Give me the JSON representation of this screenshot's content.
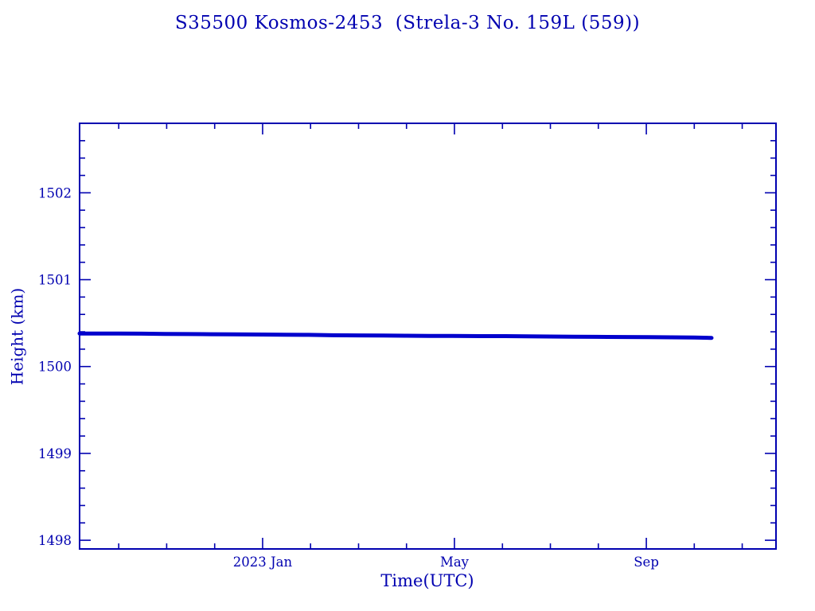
{
  "page": {
    "background": "#ffffff"
  },
  "chart_data": {
    "type": "line",
    "title": "S35500 Kosmos-2453  (Strela-3 No. 159L (559))",
    "xlabel": "Time(UTC)",
    "ylabel": "Height (km)",
    "xlim": [
      2022.682,
      2023.892
    ],
    "ylim": [
      1497.9,
      1502.8
    ],
    "grid": false,
    "legend": "none",
    "frame_color": "#0000b0",
    "text_color": "#0000b0",
    "x_major_ticks": [
      {
        "value": 2023.0,
        "label": "2023 Jan"
      },
      {
        "value": 2023.3333,
        "label": "May"
      },
      {
        "value": 2023.6667,
        "label": "Sep"
      }
    ],
    "x_minor_ticks": [
      2022.75,
      2022.8333,
      2022.9167,
      2023.0833,
      2023.1667,
      2023.25,
      2023.4167,
      2023.5,
      2023.5833,
      2023.75,
      2023.8333
    ],
    "y_major_ticks": [
      {
        "value": 1498,
        "label": "1498"
      },
      {
        "value": 1499,
        "label": "1499"
      },
      {
        "value": 1500,
        "label": "1500"
      },
      {
        "value": 1501,
        "label": "1501"
      },
      {
        "value": 1502,
        "label": "1502"
      }
    ],
    "y_minor_step": 0.2,
    "series": [
      {
        "name": "height",
        "color": "#0000cd",
        "line_width": 5,
        "x": [
          2022.682,
          2022.72,
          2022.75,
          2022.79,
          2022.83,
          2022.87,
          2022.91,
          2022.95,
          2023.0,
          2023.04,
          2023.08,
          2023.12,
          2023.17,
          2023.21,
          2023.25,
          2023.29,
          2023.33,
          2023.38,
          2023.42,
          2023.46,
          2023.5,
          2023.54,
          2023.58,
          2023.63,
          2023.67,
          2023.71,
          2023.75,
          2023.78
        ],
        "y": [
          1500.38,
          1500.38,
          1500.38,
          1500.378,
          1500.376,
          1500.374,
          1500.372,
          1500.37,
          1500.368,
          1500.366,
          1500.365,
          1500.36,
          1500.358,
          1500.356,
          1500.355,
          1500.353,
          1500.352,
          1500.35,
          1500.35,
          1500.348,
          1500.345,
          1500.343,
          1500.342,
          1500.34,
          1500.338,
          1500.336,
          1500.334,
          1500.33
        ]
      }
    ]
  }
}
